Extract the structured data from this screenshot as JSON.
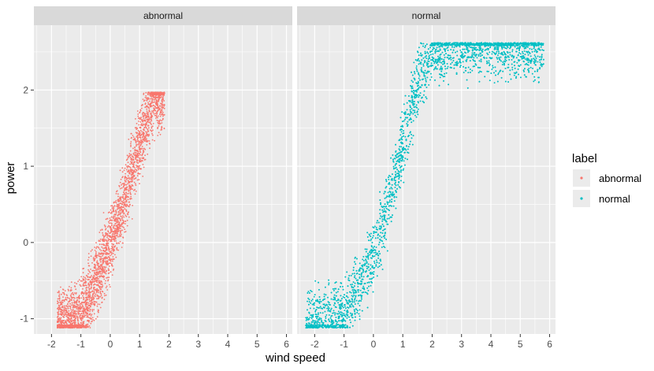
{
  "chart_data": {
    "type": "scatter",
    "xlabel": "wind speed",
    "ylabel": "power",
    "xlim": [
      -2.6,
      6.2
    ],
    "ylim": [
      -1.2,
      2.85
    ],
    "x_ticks": [
      -2,
      -1,
      0,
      1,
      2,
      3,
      4,
      5,
      6
    ],
    "y_ticks": [
      -1,
      0,
      1,
      2
    ],
    "grid": true,
    "legend": {
      "title": "label",
      "position": "right",
      "entries": [
        {
          "label": "abnormal",
          "color": "#F8766D"
        },
        {
          "label": "normal",
          "color": "#00BFC4"
        }
      ]
    },
    "panels": [
      {
        "strip": "abnormal",
        "series": "abnormal",
        "color": "#F8766D",
        "x_range": [
          -1.8,
          1.85
        ],
        "y_range": [
          -1.12,
          1.97
        ],
        "band": [
          [
            -1.8,
            -1.12
          ],
          [
            -1.0,
            -1.0
          ],
          [
            -0.5,
            -0.5
          ],
          [
            0.0,
            0.0
          ],
          [
            0.5,
            0.6
          ],
          [
            1.0,
            1.3
          ],
          [
            1.5,
            1.9
          ]
        ]
      },
      {
        "strip": "normal",
        "series": "normal",
        "color": "#00BFC4",
        "x_range": [
          -2.3,
          5.8
        ],
        "y_range": [
          -1.12,
          2.62
        ],
        "band": [
          [
            -2.3,
            -1.1
          ],
          [
            -1.0,
            -0.95
          ],
          [
            0.0,
            -0.2
          ],
          [
            0.5,
            0.5
          ],
          [
            1.0,
            1.3
          ],
          [
            1.5,
            2.1
          ],
          [
            2.0,
            2.5
          ],
          [
            3.0,
            2.6
          ],
          [
            5.8,
            2.55
          ]
        ]
      }
    ]
  }
}
